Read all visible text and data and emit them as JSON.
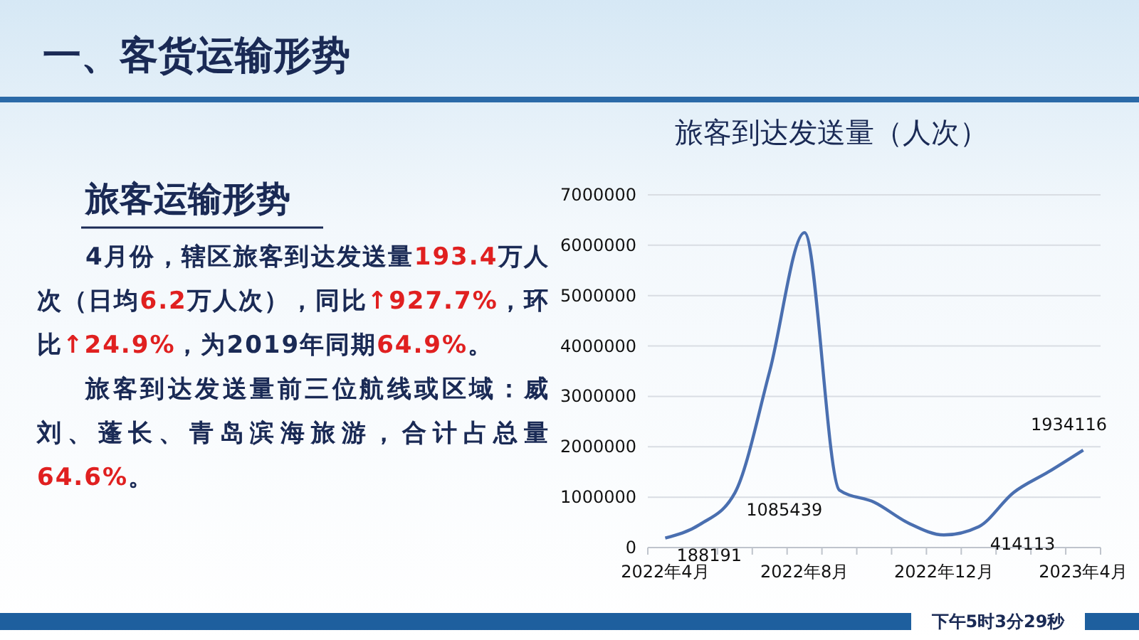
{
  "chart_data": {
    "type": "line",
    "title": "旅客到达发送量（人次）",
    "categories": [
      "2022年4月",
      null,
      null,
      null,
      "2022年8月",
      null,
      null,
      null,
      "2022年12月",
      null,
      null,
      null,
      "2023年4月"
    ],
    "series": [
      {
        "color": "#4a6fb0",
        "values": [
          188191,
          460000,
          1085439,
          3500000,
          6250000,
          1140000,
          900000,
          480000,
          250000,
          414113,
          1090000,
          1500000,
          1934116
        ],
        "value_labels": [
          "188191",
          null,
          "1085439",
          null,
          null,
          null,
          null,
          null,
          null,
          "414113",
          null,
          null,
          "1934116"
        ]
      }
    ],
    "ylim": [
      0,
      7000000
    ],
    "yticks": [
      0,
      1000000,
      2000000,
      3000000,
      4000000,
      5000000,
      6000000,
      7000000
    ],
    "grid": "y",
    "marker": "none",
    "line_style": "solid",
    "annotations": [
      "一、客货运输形势",
      "旅客运输形势",
      "4月份，辖区旅客到达发送量193.4万人次（日均6.2万人次），同比↑927.7%，环比↑24.9%，为2019年同期64.9%。",
      "旅客到达发送量前三位航线或区域：威刘、蓬长、青岛滨海旅游，合计占总量64.6%。",
      "下午5时3分29秒"
    ]
  }
}
